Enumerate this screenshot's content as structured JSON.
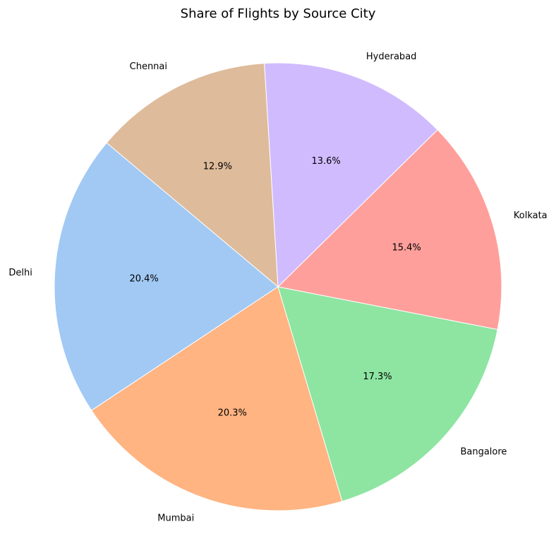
{
  "chart_data": {
    "type": "pie",
    "title": "Share of Flights by Source City",
    "start_angle_deg": 140,
    "direction": "counterclockwise",
    "categories": [
      "Delhi",
      "Mumbai",
      "Bangalore",
      "Kolkata",
      "Hyderabad",
      "Chennai"
    ],
    "values": [
      20.4,
      20.3,
      17.3,
      15.4,
      13.6,
      12.9
    ],
    "value_labels": [
      "20.4%",
      "20.3%",
      "17.3%",
      "15.4%",
      "13.6%",
      "12.9%"
    ],
    "colors": [
      "#a1c9f4",
      "#ffb482",
      "#8de5a1",
      "#ff9f9b",
      "#d0bbff",
      "#debb9b"
    ],
    "legend": "none",
    "grid": false
  }
}
